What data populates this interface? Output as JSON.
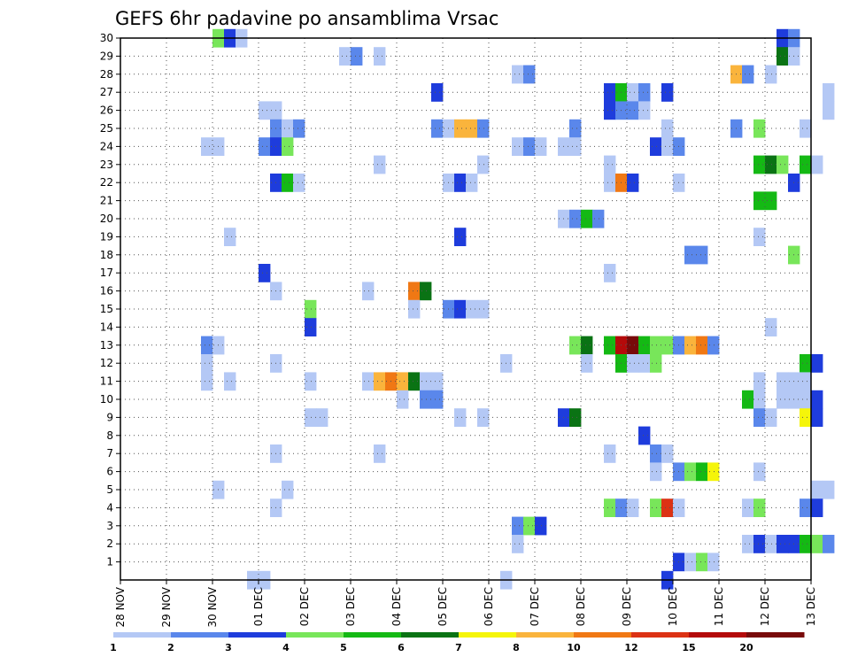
{
  "chart_data": {
    "type": "heatmap",
    "title": "GEFS 6hr padavine po ansamblima Vrsac",
    "x_tick_labels": [
      "28 NOV",
      "29 NOV",
      "30 NOV",
      "01 DEC",
      "02 DEC",
      "03 DEC",
      "04 DEC",
      "05 DEC",
      "06 DEC",
      "07 DEC",
      "08 DEC",
      "09 DEC",
      "10 DEC",
      "11 DEC",
      "12 DEC",
      "13 DEC"
    ],
    "y_tick_labels": [
      1,
      2,
      3,
      4,
      5,
      6,
      7,
      8,
      9,
      10,
      11,
      12,
      13,
      14,
      15,
      16,
      17,
      18,
      19,
      20,
      21,
      22,
      23,
      24,
      25,
      26,
      27,
      28,
      29,
      30
    ],
    "xlim": [
      "28 NOV",
      "13 DEC"
    ],
    "ylim": [
      0,
      30
    ],
    "steps_per_day": 4,
    "grid": true,
    "legend": {
      "placement": "bottom",
      "labels": [
        "1",
        "2",
        "3",
        "4",
        "5",
        "6",
        "7",
        "8",
        "10",
        "12",
        "15",
        "20"
      ],
      "colors": [
        "#b4c8f5",
        "#5a87eb",
        "#1e3cdc",
        "#78e65a",
        "#14b914",
        "#0a7314",
        "#f5f50a",
        "#fab43c",
        "#f07814",
        "#dc3214",
        "#b40a0a",
        "#780a0a"
      ]
    },
    "colors": [
      "#b4c8f5",
      "#5a87eb",
      "#1e3cdc",
      "#78e65a",
      "#14b914",
      "#0a7314",
      "#f5f50a",
      "#fab43c",
      "#f07814",
      "#dc3214",
      "#b40a0a",
      "#780a0a"
    ],
    "cells": [
      [
        8,
        30,
        4
      ],
      [
        9,
        30,
        3
      ],
      [
        10,
        30,
        1
      ],
      [
        57,
        30,
        3
      ],
      [
        58,
        30,
        2
      ],
      [
        19,
        29,
        1
      ],
      [
        20,
        29,
        2
      ],
      [
        22,
        29,
        1
      ],
      [
        57,
        29,
        6
      ],
      [
        58,
        29,
        1
      ],
      [
        34,
        28,
        1
      ],
      [
        35,
        28,
        2
      ],
      [
        53,
        28,
        8
      ],
      [
        54,
        28,
        2
      ],
      [
        56,
        28,
        1
      ],
      [
        27,
        27,
        3
      ],
      [
        42,
        27,
        3
      ],
      [
        43,
        27,
        5
      ],
      [
        44,
        27,
        1
      ],
      [
        45,
        27,
        2
      ],
      [
        47,
        27,
        3
      ],
      [
        61,
        27,
        1
      ],
      [
        12,
        26,
        1
      ],
      [
        13,
        26,
        1
      ],
      [
        42,
        26,
        3
      ],
      [
        43,
        26,
        2
      ],
      [
        44,
        26,
        2
      ],
      [
        45,
        26,
        1
      ],
      [
        61,
        26,
        1
      ],
      [
        13,
        25,
        2
      ],
      [
        14,
        25,
        1
      ],
      [
        15,
        25,
        2
      ],
      [
        27,
        25,
        2
      ],
      [
        28,
        25,
        1
      ],
      [
        29,
        25,
        8
      ],
      [
        30,
        25,
        8
      ],
      [
        31,
        25,
        2
      ],
      [
        39,
        25,
        2
      ],
      [
        47,
        25,
        1
      ],
      [
        53,
        25,
        2
      ],
      [
        55,
        25,
        4
      ],
      [
        59,
        25,
        1
      ],
      [
        7,
        24,
        1
      ],
      [
        8,
        24,
        1
      ],
      [
        12,
        24,
        2
      ],
      [
        13,
        24,
        3
      ],
      [
        14,
        24,
        4
      ],
      [
        34,
        24,
        1
      ],
      [
        35,
        24,
        2
      ],
      [
        36,
        24,
        1
      ],
      [
        38,
        24,
        1
      ],
      [
        39,
        24,
        1
      ],
      [
        46,
        24,
        3
      ],
      [
        47,
        24,
        1
      ],
      [
        48,
        24,
        2
      ],
      [
        22,
        23,
        1
      ],
      [
        31,
        23,
        1
      ],
      [
        42,
        23,
        1
      ],
      [
        55,
        23,
        5
      ],
      [
        56,
        23,
        6
      ],
      [
        57,
        23,
        4
      ],
      [
        59,
        23,
        5
      ],
      [
        60,
        23,
        1
      ],
      [
        13,
        22,
        3
      ],
      [
        14,
        22,
        5
      ],
      [
        15,
        22,
        1
      ],
      [
        28,
        22,
        1
      ],
      [
        29,
        22,
        3
      ],
      [
        30,
        22,
        1
      ],
      [
        42,
        22,
        1
      ],
      [
        43,
        22,
        9
      ],
      [
        44,
        22,
        3
      ],
      [
        48,
        22,
        1
      ],
      [
        58,
        22,
        3
      ],
      [
        55,
        21,
        5
      ],
      [
        56,
        21,
        5
      ],
      [
        38,
        20,
        1
      ],
      [
        39,
        20,
        2
      ],
      [
        40,
        20,
        5
      ],
      [
        41,
        20,
        2
      ],
      [
        9,
        19,
        1
      ],
      [
        29,
        19,
        3
      ],
      [
        55,
        19,
        1
      ],
      [
        49,
        18,
        2
      ],
      [
        50,
        18,
        2
      ],
      [
        58,
        18,
        4
      ],
      [
        12,
        17,
        3
      ],
      [
        42,
        17,
        1
      ],
      [
        13,
        16,
        1
      ],
      [
        21,
        16,
        1
      ],
      [
        25,
        16,
        9
      ],
      [
        26,
        16,
        6
      ],
      [
        16,
        15,
        4
      ],
      [
        25,
        15,
        1
      ],
      [
        28,
        15,
        2
      ],
      [
        29,
        15,
        3
      ],
      [
        30,
        15,
        1
      ],
      [
        31,
        15,
        1
      ],
      [
        16,
        14,
        3
      ],
      [
        56,
        14,
        1
      ],
      [
        7,
        13,
        2
      ],
      [
        8,
        13,
        1
      ],
      [
        39,
        13,
        4
      ],
      [
        40,
        13,
        6
      ],
      [
        42,
        13,
        5
      ],
      [
        43,
        13,
        11
      ],
      [
        44,
        13,
        12
      ],
      [
        45,
        13,
        5
      ],
      [
        46,
        13,
        4
      ],
      [
        47,
        13,
        4
      ],
      [
        48,
        13,
        2
      ],
      [
        49,
        13,
        8
      ],
      [
        50,
        13,
        9
      ],
      [
        51,
        13,
        2
      ],
      [
        7,
        12,
        1
      ],
      [
        13,
        12,
        1
      ],
      [
        33,
        12,
        1
      ],
      [
        40,
        12,
        1
      ],
      [
        43,
        12,
        5
      ],
      [
        44,
        12,
        1
      ],
      [
        45,
        12,
        1
      ],
      [
        46,
        12,
        4
      ],
      [
        59,
        12,
        5
      ],
      [
        60,
        12,
        3
      ],
      [
        7,
        11,
        1
      ],
      [
        9,
        11,
        1
      ],
      [
        16,
        11,
        1
      ],
      [
        21,
        11,
        1
      ],
      [
        22,
        11,
        8
      ],
      [
        23,
        11,
        9
      ],
      [
        24,
        11,
        8
      ],
      [
        25,
        11,
        6
      ],
      [
        26,
        11,
        1
      ],
      [
        27,
        11,
        1
      ],
      [
        55,
        11,
        1
      ],
      [
        57,
        11,
        1
      ],
      [
        58,
        11,
        1
      ],
      [
        59,
        11,
        1
      ],
      [
        24,
        10,
        1
      ],
      [
        26,
        10,
        2
      ],
      [
        27,
        10,
        2
      ],
      [
        54,
        10,
        5
      ],
      [
        55,
        10,
        1
      ],
      [
        57,
        10,
        1
      ],
      [
        58,
        10,
        1
      ],
      [
        59,
        10,
        1
      ],
      [
        60,
        10,
        3
      ],
      [
        16,
        9,
        1
      ],
      [
        17,
        9,
        1
      ],
      [
        29,
        9,
        1
      ],
      [
        31,
        9,
        1
      ],
      [
        38,
        9,
        3
      ],
      [
        39,
        9,
        6
      ],
      [
        55,
        9,
        2
      ],
      [
        56,
        9,
        1
      ],
      [
        59,
        9,
        7
      ],
      [
        60,
        9,
        3
      ],
      [
        45,
        8,
        3
      ],
      [
        13,
        7,
        1
      ],
      [
        22,
        7,
        1
      ],
      [
        42,
        7,
        1
      ],
      [
        46,
        7,
        2
      ],
      [
        47,
        7,
        1
      ],
      [
        46,
        6,
        1
      ],
      [
        48,
        6,
        2
      ],
      [
        49,
        6,
        4
      ],
      [
        50,
        6,
        5
      ],
      [
        51,
        6,
        7
      ],
      [
        55,
        6,
        1
      ],
      [
        8,
        5,
        1
      ],
      [
        14,
        5,
        1
      ],
      [
        60,
        5,
        1
      ],
      [
        61,
        5,
        1
      ],
      [
        13,
        4,
        1
      ],
      [
        42,
        4,
        4
      ],
      [
        43,
        4,
        2
      ],
      [
        44,
        4,
        1
      ],
      [
        46,
        4,
        4
      ],
      [
        47,
        4,
        10
      ],
      [
        48,
        4,
        1
      ],
      [
        54,
        4,
        1
      ],
      [
        55,
        4,
        4
      ],
      [
        59,
        4,
        2
      ],
      [
        60,
        4,
        3
      ],
      [
        34,
        3,
        2
      ],
      [
        35,
        3,
        4
      ],
      [
        36,
        3,
        3
      ],
      [
        34,
        2,
        1
      ],
      [
        54,
        2,
        1
      ],
      [
        55,
        2,
        3
      ],
      [
        56,
        2,
        1
      ],
      [
        57,
        2,
        3
      ],
      [
        58,
        2,
        3
      ],
      [
        59,
        2,
        5
      ],
      [
        60,
        2,
        4
      ],
      [
        61,
        2,
        2
      ],
      [
        48,
        1,
        3
      ],
      [
        49,
        1,
        1
      ],
      [
        50,
        1,
        4
      ],
      [
        51,
        1,
        1
      ],
      [
        11,
        0,
        1
      ],
      [
        12,
        0,
        1
      ],
      [
        33,
        0,
        1
      ],
      [
        47,
        0,
        3
      ]
    ]
  }
}
